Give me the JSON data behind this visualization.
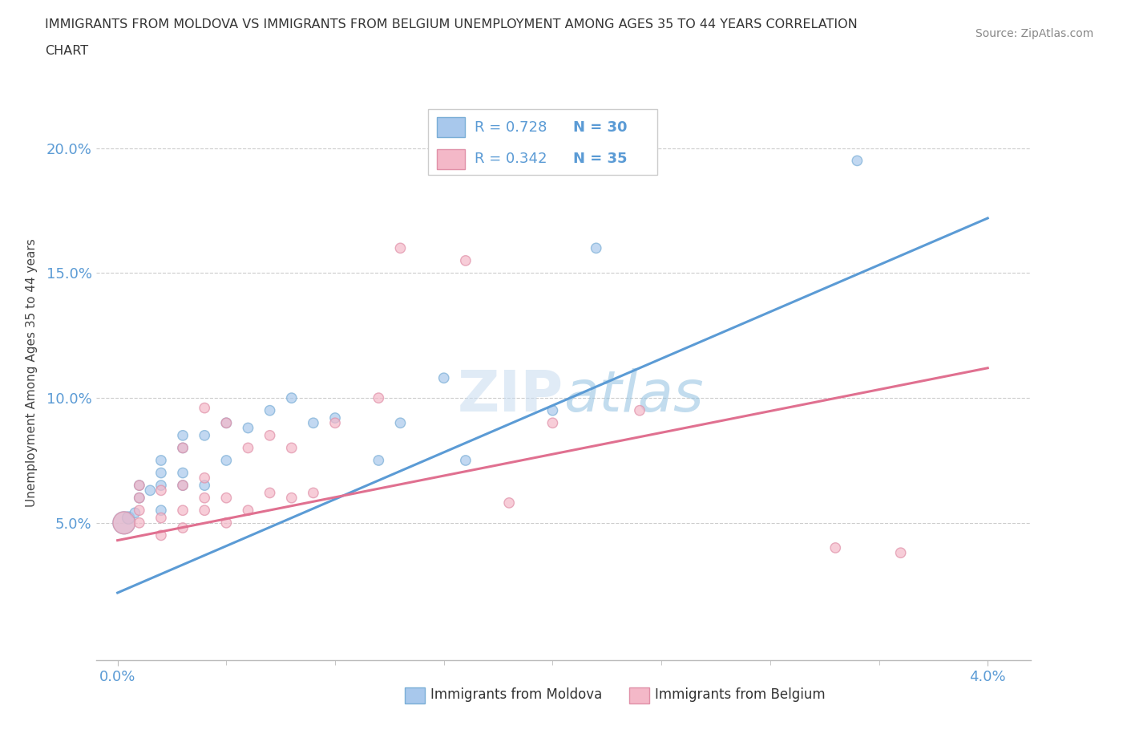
{
  "title_line1": "IMMIGRANTS FROM MOLDOVA VS IMMIGRANTS FROM BELGIUM UNEMPLOYMENT AMONG AGES 35 TO 44 YEARS CORRELATION",
  "title_line2": "CHART",
  "source": "Source: ZipAtlas.com",
  "ylabel": "Unemployment Among Ages 35 to 44 years",
  "xlim": [
    -0.001,
    0.042
  ],
  "ylim": [
    -0.005,
    0.225
  ],
  "yticks": [
    0.05,
    0.1,
    0.15,
    0.2
  ],
  "ytick_labels": [
    "5.0%",
    "10.0%",
    "15.0%",
    "20.0%"
  ],
  "xtick_labels": [
    "0.0%",
    "4.0%"
  ],
  "xticks": [
    0.0,
    0.04
  ],
  "moldova_color": "#A8C8EC",
  "moldova_edge": "#7AAED6",
  "belgium_color": "#F4B8C8",
  "belgium_edge": "#E090A8",
  "line_moldova_color": "#5B9BD5",
  "line_belgium_color": "#E07090",
  "legend_r_color": "#5B9BD5",
  "legend_n_color": "#E07020",
  "legend_text_color": "#222222",
  "watermark": "ZIPatlas",
  "moldova_x": [
    0.0003,
    0.0005,
    0.0008,
    0.001,
    0.001,
    0.0015,
    0.002,
    0.002,
    0.002,
    0.002,
    0.003,
    0.003,
    0.003,
    0.003,
    0.004,
    0.004,
    0.005,
    0.005,
    0.006,
    0.007,
    0.008,
    0.009,
    0.01,
    0.012,
    0.013,
    0.015,
    0.016,
    0.02,
    0.022,
    0.034
  ],
  "moldova_y": [
    0.05,
    0.052,
    0.054,
    0.06,
    0.065,
    0.063,
    0.055,
    0.065,
    0.07,
    0.075,
    0.065,
    0.07,
    0.08,
    0.085,
    0.065,
    0.085,
    0.09,
    0.075,
    0.088,
    0.095,
    0.1,
    0.09,
    0.092,
    0.075,
    0.09,
    0.108,
    0.075,
    0.095,
    0.16,
    0.195
  ],
  "moldova_sizes": [
    400,
    120,
    80,
    80,
    80,
    80,
    80,
    80,
    80,
    80,
    80,
    80,
    80,
    80,
    80,
    80,
    80,
    80,
    80,
    80,
    80,
    80,
    80,
    80,
    80,
    80,
    80,
    80,
    80,
    80
  ],
  "belgium_x": [
    0.0003,
    0.001,
    0.001,
    0.001,
    0.001,
    0.002,
    0.002,
    0.002,
    0.003,
    0.003,
    0.003,
    0.003,
    0.004,
    0.004,
    0.004,
    0.004,
    0.005,
    0.005,
    0.005,
    0.006,
    0.006,
    0.007,
    0.007,
    0.008,
    0.008,
    0.009,
    0.01,
    0.012,
    0.013,
    0.016,
    0.018,
    0.02,
    0.024,
    0.033,
    0.036
  ],
  "belgium_y": [
    0.05,
    0.05,
    0.055,
    0.06,
    0.065,
    0.045,
    0.052,
    0.063,
    0.048,
    0.055,
    0.065,
    0.08,
    0.055,
    0.06,
    0.068,
    0.096,
    0.05,
    0.06,
    0.09,
    0.055,
    0.08,
    0.062,
    0.085,
    0.06,
    0.08,
    0.062,
    0.09,
    0.1,
    0.16,
    0.155,
    0.058,
    0.09,
    0.095,
    0.04,
    0.038
  ],
  "belgium_sizes": [
    400,
    80,
    80,
    80,
    80,
    80,
    80,
    80,
    80,
    80,
    80,
    80,
    80,
    80,
    80,
    80,
    80,
    80,
    80,
    80,
    80,
    80,
    80,
    80,
    80,
    80,
    80,
    80,
    80,
    80,
    80,
    80,
    80,
    80,
    80
  ],
  "moldova_line_x0": 0.0,
  "moldova_line_y0": 0.022,
  "moldova_line_x1": 0.04,
  "moldova_line_y1": 0.172,
  "belgium_line_x0": 0.0,
  "belgium_line_y0": 0.043,
  "belgium_line_x1": 0.04,
  "belgium_line_y1": 0.112,
  "legend_r_moldova": "R = 0.728",
  "legend_n_moldova": "N = 30",
  "legend_r_belgium": "R = 0.342",
  "legend_n_belgium": "N = 35"
}
